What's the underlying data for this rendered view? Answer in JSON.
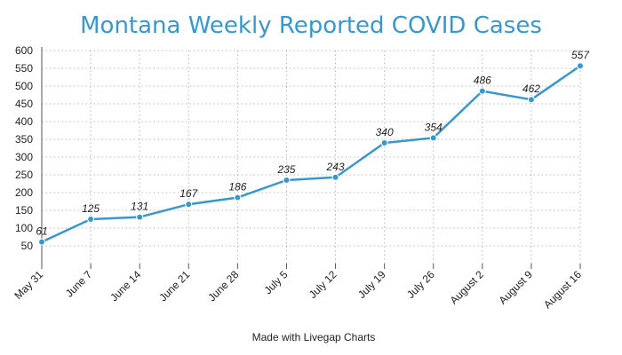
{
  "chart_data": {
    "type": "line",
    "title": "Montana Weekly Reported COVID Cases",
    "xlabel": "",
    "ylabel": "",
    "categories": [
      "May 31",
      "June 7",
      "June 14",
      "June 21",
      "June 28",
      "July 5",
      "July 12",
      "July 19",
      "July 26",
      "August 2",
      "August 9",
      "August 16"
    ],
    "series": [
      {
        "values": [
          61,
          125,
          131,
          167,
          186,
          235,
          243,
          340,
          354,
          486,
          462,
          557
        ]
      }
    ],
    "ylim": [
      0,
      600
    ],
    "yticks": [
      50,
      100,
      150,
      200,
      250,
      300,
      350,
      400,
      450,
      500,
      550,
      600
    ],
    "grid": true,
    "line_color": "#3a97cc"
  },
  "footer": {
    "credit": "Made with Livegap Charts"
  }
}
